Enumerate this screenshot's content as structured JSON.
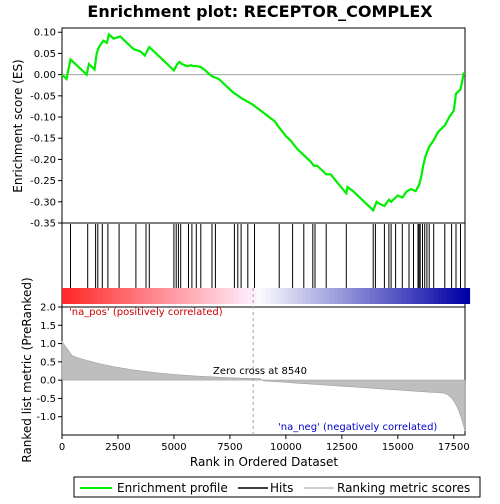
{
  "chart_data": {
    "type": "line",
    "title": "Enrichment plot: RECEPTOR_COMPLEX",
    "xlabel": "Rank in Ordered Dataset",
    "ylabel_top": "Enrichment score (ES)",
    "ylabel_bottom": "Ranked list metric (PreRanked)",
    "x_range": [
      0,
      18000
    ],
    "x_ticks": [
      0,
      2500,
      5000,
      7500,
      10000,
      12500,
      15000,
      17500
    ],
    "es_ylim": [
      -0.35,
      0.11
    ],
    "es_ticks": [
      0.1,
      0.05,
      0.0,
      -0.05,
      -0.1,
      -0.15,
      -0.2,
      -0.25,
      -0.3,
      -0.35
    ],
    "metric_ylim": [
      -1.5,
      2.0
    ],
    "metric_ticks": [
      2.0,
      1.5,
      1.0,
      0.5,
      0.0,
      -0.5,
      -1.0
    ],
    "zero_cross_label": "Zero cross at 8540",
    "zero_cross_x": 8540,
    "pos_label": "'na_pos' (positively correlated)",
    "neg_label": "'na_neg' (negatively correlated)",
    "series": [
      {
        "name": "Enrichment profile",
        "color": "#00ee00",
        "x": [
          0,
          200,
          380,
          700,
          1100,
          1200,
          1450,
          1550,
          1650,
          1850,
          2000,
          2100,
          2300,
          2600,
          2900,
          3200,
          3500,
          3700,
          3900,
          4200,
          4500,
          5000,
          5050,
          5150,
          5250,
          5350,
          5600,
          5750,
          5900,
          6050,
          6200,
          6400,
          6600,
          6750,
          7000,
          7300,
          7600,
          8000,
          8500,
          9000,
          9500,
          9700,
          10000,
          10200,
          10500,
          10800,
          11100,
          11250,
          11400,
          11600,
          11800,
          12000,
          12300,
          12700,
          12750,
          13000,
          13500,
          13900,
          14050,
          14200,
          14400,
          14600,
          14700,
          14900,
          15000,
          15200,
          15400,
          15600,
          15800,
          15950,
          16050,
          16150,
          16250,
          16400,
          16600,
          16800,
          17100,
          17300,
          17500,
          17600,
          17800,
          17950
        ],
        "y": [
          0.0,
          -0.01,
          0.036,
          0.02,
          0.0,
          0.025,
          0.012,
          0.05,
          0.065,
          0.08,
          0.075,
          0.095,
          0.085,
          0.09,
          0.075,
          0.06,
          0.055,
          0.045,
          0.065,
          0.05,
          0.035,
          0.01,
          0.015,
          0.025,
          0.03,
          0.025,
          0.02,
          0.022,
          0.02,
          0.02,
          0.018,
          0.01,
          0.0,
          -0.005,
          -0.01,
          -0.025,
          -0.04,
          -0.055,
          -0.07,
          -0.09,
          -0.11,
          -0.125,
          -0.145,
          -0.155,
          -0.175,
          -0.19,
          -0.205,
          -0.215,
          -0.215,
          -0.225,
          -0.235,
          -0.235,
          -0.255,
          -0.28,
          -0.265,
          -0.275,
          -0.3,
          -0.32,
          -0.3,
          -0.305,
          -0.31,
          -0.295,
          -0.3,
          -0.29,
          -0.285,
          -0.29,
          -0.275,
          -0.27,
          -0.275,
          -0.26,
          -0.24,
          -0.21,
          -0.19,
          -0.17,
          -0.155,
          -0.135,
          -0.12,
          -0.1,
          -0.085,
          -0.045,
          -0.035,
          0.005
        ]
      }
    ],
    "hits": [
      380,
      1150,
      1500,
      1600,
      1800,
      2050,
      2550,
      3300,
      3750,
      3900,
      5000,
      5100,
      5200,
      5300,
      5650,
      5800,
      6000,
      6200,
      6700,
      6850,
      7700,
      7850,
      8000,
      8300,
      8600,
      9700,
      10300,
      10800,
      11200,
      11300,
      11800,
      12700,
      13900,
      14000,
      14400,
      14600,
      14700,
      14900,
      15200,
      15500,
      15700,
      15900,
      15950,
      16000,
      16100,
      16200,
      16300,
      16400,
      16600,
      17100,
      17400,
      17600,
      17800
    ],
    "colors": {
      "es_line": "#00ee00",
      "hit": "#000000",
      "metric_fill": "#bebebe",
      "zero_line": "#a0a0a0",
      "pos_text": "#cc0000",
      "neg_text": "#0000cc"
    }
  },
  "legend": {
    "items": [
      {
        "label": "Enrichment profile",
        "swatch": "green-line"
      },
      {
        "label": "Hits",
        "swatch": "black-line"
      },
      {
        "label": "Ranking metric scores",
        "swatch": "gray-line"
      }
    ]
  }
}
